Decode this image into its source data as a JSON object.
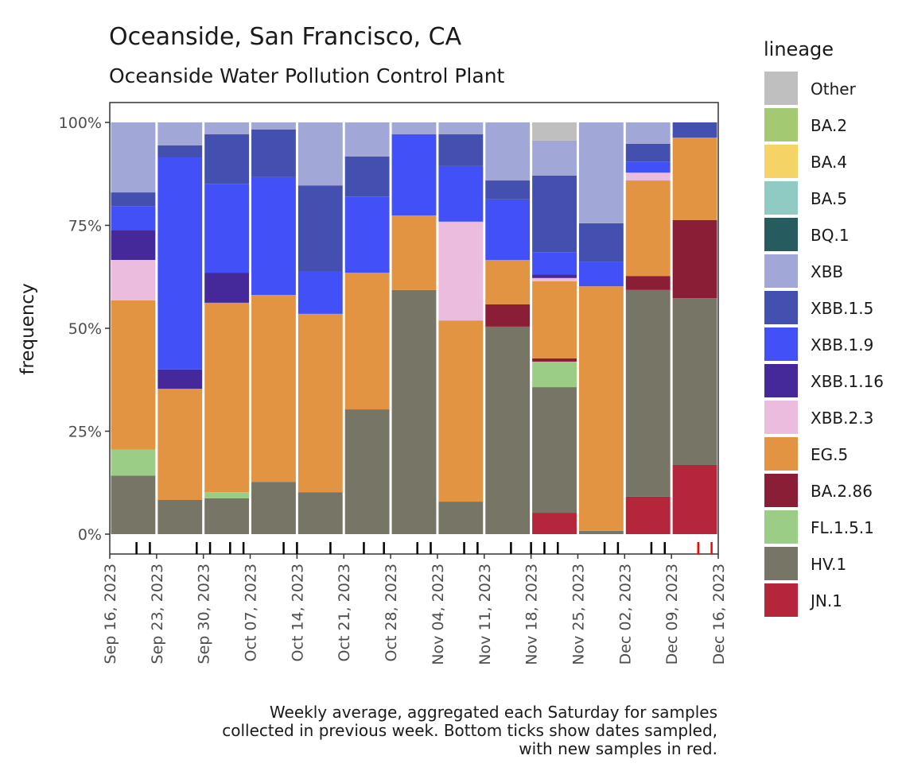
{
  "chart_data": {
    "type": "bar",
    "stacked": true,
    "title": "Oceanside, San Francisco, CA",
    "subtitle": "Oceanside Water Pollution Control Plant",
    "xlabel": "",
    "ylabel": "frequency",
    "ylim": [
      0,
      100
    ],
    "yticks": [
      "0%",
      "25%",
      "50%",
      "75%",
      "100%"
    ],
    "ytick_values": [
      0,
      25,
      50,
      75,
      100
    ],
    "xticks": [
      "Sep 16, 2023",
      "Sep 23, 2023",
      "Sep 30, 2023",
      "Oct 07, 2023",
      "Oct 14, 2023",
      "Oct 21, 2023",
      "Oct 28, 2023",
      "Nov 04, 2023",
      "Nov 11, 2023",
      "Nov 18, 2023",
      "Nov 25, 2023",
      "Dec 02, 2023",
      "Dec 09, 2023",
      "Dec 16, 2023"
    ],
    "categories": [
      "Sep 23, 2023",
      "Sep 30, 2023",
      "Oct 07, 2023",
      "Oct 14, 2023",
      "Oct 21, 2023",
      "Oct 28, 2023",
      "Nov 04, 2023",
      "Nov 11, 2023",
      "Nov 18, 2023",
      "Nov 25, 2023",
      "Dec 02, 2023",
      "Dec 09, 2023",
      "Dec 16, 2023"
    ],
    "legend_title": "lineage",
    "legend_position": "right",
    "series": [
      {
        "name": "JN.1",
        "color": "#b5263b",
        "values": [
          0,
          0,
          0,
          0,
          0,
          0,
          0,
          0,
          0,
          5.2,
          0,
          9.1,
          16.8
        ]
      },
      {
        "name": "HV.1",
        "color": "#777566",
        "values": [
          14.2,
          8.3,
          8.7,
          12.7,
          10.2,
          30.3,
          59.3,
          7.9,
          50.4,
          30.5,
          0.8,
          50.2,
          40.5
        ]
      },
      {
        "name": "FL.1.5.1",
        "color": "#9ccd86",
        "values": [
          6.3,
          0,
          1.5,
          0,
          0,
          0,
          0,
          0,
          0,
          6.2,
          0,
          0,
          0
        ]
      },
      {
        "name": "BA.2.86",
        "color": "#8a1e36",
        "values": [
          0,
          0,
          0,
          0,
          0,
          0,
          0,
          0,
          5.4,
          0.8,
          0,
          3.4,
          19.0
        ]
      },
      {
        "name": "EG.5",
        "color": "#e29443",
        "values": [
          36.3,
          27.0,
          46.0,
          45.4,
          43.3,
          33.2,
          18.1,
          44.0,
          10.8,
          18.7,
          59.4,
          23.2,
          20.0
        ]
      },
      {
        "name": "XBB.2.3",
        "color": "#ebbcdd",
        "values": [
          9.8,
          0,
          0,
          0,
          0,
          0,
          0,
          24.0,
          0,
          0.8,
          0,
          1.9,
          0
        ]
      },
      {
        "name": "XBB.1.16",
        "color": "#45289a",
        "values": [
          7.3,
          4.7,
          7.3,
          0,
          0,
          0,
          0,
          0,
          0,
          0.9,
          0,
          0,
          0
        ]
      },
      {
        "name": "XBB.1.9",
        "color": "#4250f7",
        "values": [
          5.8,
          51.5,
          21.6,
          28.6,
          10.4,
          18.5,
          19.7,
          13.5,
          14.7,
          5.4,
          6.0,
          2.7,
          0
        ]
      },
      {
        "name": "XBB.1.5",
        "color": "#4450b0",
        "values": [
          3.3,
          2.9,
          12.0,
          11.6,
          20.8,
          9.7,
          0,
          7.7,
          4.6,
          18.6,
          9.3,
          4.3,
          3.7
        ]
      },
      {
        "name": "XBB",
        "color": "#a1a8d8",
        "values": [
          17.0,
          5.6,
          2.9,
          1.7,
          15.3,
          8.3,
          2.9,
          2.9,
          14.1,
          8.5,
          24.5,
          5.2,
          0
        ]
      },
      {
        "name": "BQ.1",
        "color": "#265c60",
        "values": [
          0,
          0,
          0,
          0,
          0,
          0,
          0,
          0,
          0,
          0,
          0,
          0,
          0
        ]
      },
      {
        "name": "BA.5",
        "color": "#8fcbc3",
        "values": [
          0,
          0,
          0,
          0,
          0,
          0,
          0,
          0,
          0,
          0,
          0,
          0,
          0
        ]
      },
      {
        "name": "BA.4",
        "color": "#f5d364",
        "values": [
          0,
          0,
          0,
          0,
          0,
          0,
          0,
          0,
          0,
          0,
          0,
          0,
          0
        ]
      },
      {
        "name": "BA.2",
        "color": "#a3ca72",
        "values": [
          0,
          0,
          0,
          0,
          0,
          0,
          0,
          0,
          0,
          0,
          0,
          0,
          0
        ]
      },
      {
        "name": "Other",
        "color": "#bfbfbf",
        "values": [
          0,
          0,
          0,
          0,
          0,
          0,
          0,
          0,
          0,
          4.4,
          0,
          0,
          0
        ]
      }
    ],
    "legend_order": [
      "Other",
      "BA.2",
      "BA.4",
      "BA.5",
      "BQ.1",
      "XBB",
      "XBB.1.5",
      "XBB.1.9",
      "XBB.1.16",
      "XBB.2.3",
      "EG.5",
      "BA.2.86",
      "FL.1.5.1",
      "HV.1",
      "JN.1"
    ],
    "sample_dates": {
      "previous": [
        "Sep 20, 2023",
        "Sep 22, 2023",
        "Sep 29, 2023",
        "Oct 01, 2023",
        "Oct 04, 2023",
        "Oct 06, 2023",
        "Oct 12, 2023",
        "Oct 14, 2023",
        "Oct 19, 2023",
        "Oct 24, 2023",
        "Oct 27, 2023",
        "Nov 01, 2023",
        "Nov 03, 2023",
        "Nov 08, 2023",
        "Nov 10, 2023",
        "Nov 15, 2023",
        "Nov 18, 2023",
        "Nov 20, 2023",
        "Nov 22, 2023",
        "Nov 29, 2023",
        "Dec 01, 2023",
        "Dec 06, 2023",
        "Dec 08, 2023"
      ],
      "previous_day_offsets": [
        4,
        6,
        13,
        15,
        18,
        20,
        26,
        28,
        33,
        38,
        41,
        46,
        48,
        53,
        55,
        60,
        63,
        65,
        67,
        74,
        76,
        81,
        83
      ],
      "new": [
        "Dec 13, 2023",
        "Dec 15, 2023"
      ],
      "new_day_offsets": [
        88,
        90
      ],
      "previous_color": "#000000",
      "new_color": "#ff0000"
    },
    "x_range_days": [
      0,
      91
    ],
    "caption": [
      "Weekly average, aggregated each Saturday for samples",
      "collected in previous week. Bottom ticks show dates sampled,",
      "with new samples in red."
    ]
  }
}
